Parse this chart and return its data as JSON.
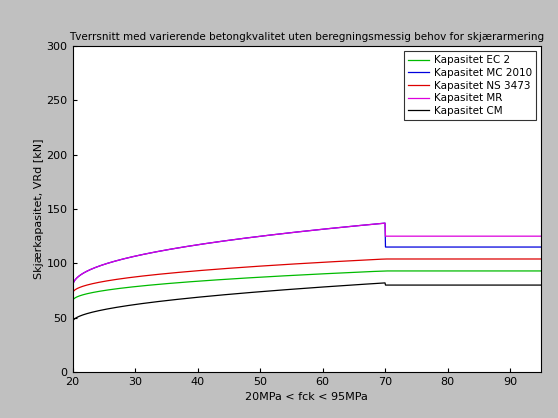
{
  "title": "Tverrsnitt med varierende betongkvalitet uten beregningsmessig behov for skjærarmering",
  "xlabel": "20MPa < fck < 95MPa",
  "ylabel": "Skjærkapasitet, VRd [kN]",
  "xlim": [
    20,
    95
  ],
  "ylim": [
    0,
    300
  ],
  "xticks": [
    20,
    30,
    40,
    50,
    60,
    70,
    80,
    90
  ],
  "yticks": [
    0,
    50,
    100,
    150,
    200,
    250,
    300
  ],
  "background_color": "#c0c0c0",
  "plot_background": "#ffffff",
  "title_fontsize": 7.5,
  "axis_label_fontsize": 8,
  "tick_fontsize": 8,
  "legend_fontsize": 7.5,
  "lines": [
    {
      "label": "Kapasitet EC 2",
      "color": "#00bb00",
      "val_start": 65,
      "val_peak": 93,
      "val_flat": 93,
      "fck_break": 70,
      "exponent": 0.45
    },
    {
      "label": "Kapasitet MC 2010",
      "color": "#0000dd",
      "val_start": 78,
      "val_peak": 137,
      "val_flat": 115,
      "fck_break": 70,
      "exponent": 0.45
    },
    {
      "label": "Kapasitet NS 3473",
      "color": "#dd0000",
      "val_start": 72,
      "val_peak": 104,
      "val_flat": 104,
      "fck_break": 70,
      "exponent": 0.45
    },
    {
      "label": "Kapasitet MR",
      "color": "#dd00dd",
      "val_start": 78,
      "val_peak": 137,
      "val_flat": 125,
      "fck_break": 70,
      "exponent": 0.45
    },
    {
      "label": "Kapasitet CM",
      "color": "#000000",
      "val_start": 46,
      "val_peak": 82,
      "val_flat": 80,
      "fck_break": 70,
      "exponent": 0.5
    }
  ]
}
